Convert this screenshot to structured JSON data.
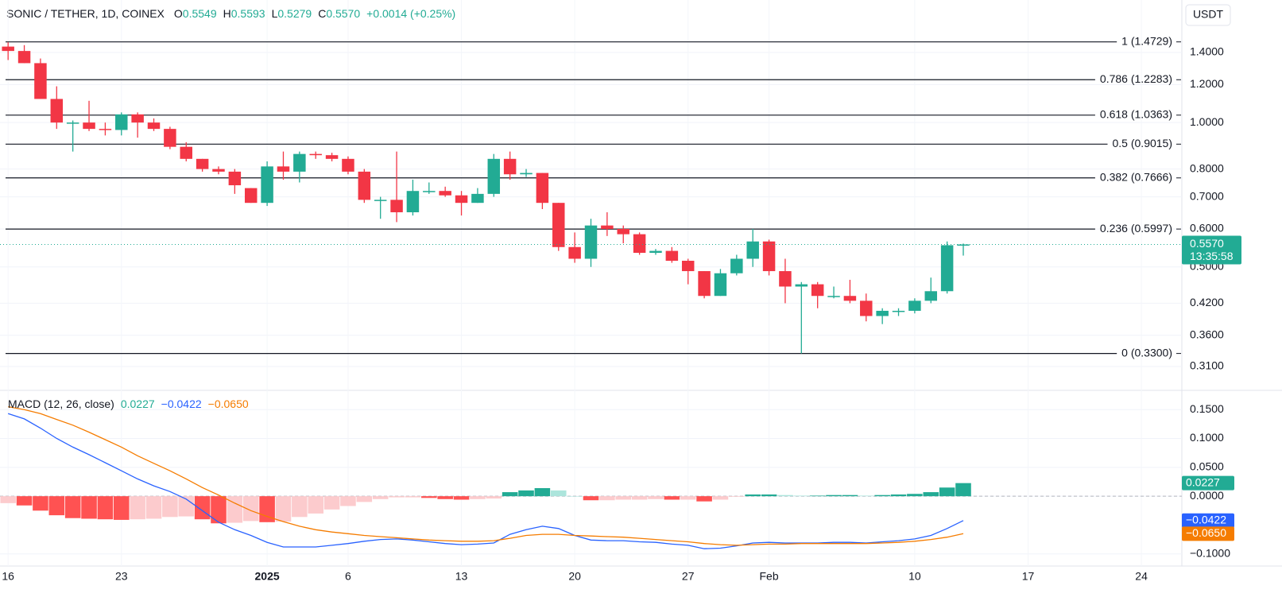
{
  "chart_data": [
    {
      "type": "candlestick",
      "title": "SONIC / TETHER, 1D, COINEX",
      "legend_values": [
        {
          "key": "O",
          "text": "0.5549"
        },
        {
          "key": "H",
          "text": "0.5593"
        },
        {
          "key": "L",
          "text": "0.5279"
        },
        {
          "key": "C",
          "text": "0.5570"
        }
      ],
      "change": "+0.0014 (+0.25%)",
      "currency": "USDT",
      "categories": [
        "16",
        null,
        null,
        null,
        null,
        null,
        null,
        "23",
        null,
        null,
        null,
        null,
        null,
        null,
        null,
        null,
        "2025",
        null,
        null,
        null,
        null,
        "6",
        null,
        null,
        null,
        null,
        null,
        null,
        "13",
        null,
        null,
        null,
        null,
        null,
        null,
        "20",
        null,
        null,
        null,
        null,
        null,
        null,
        "27",
        null,
        null,
        null,
        null,
        "Feb",
        null,
        null,
        null,
        null,
        null,
        null,
        null,
        null,
        "10",
        null,
        null,
        null,
        null,
        null,
        null,
        "17",
        null,
        null,
        null,
        null,
        null,
        null,
        "24",
        null,
        null
      ],
      "open": [
        1.44,
        1.41,
        1.33,
        1.12,
        1.0,
        1.0,
        0.97,
        0.965,
        1.04,
        1.0,
        0.97,
        0.89,
        0.84,
        0.8,
        0.79,
        0.73,
        0.68,
        0.81,
        0.79,
        0.86,
        0.855,
        0.84,
        0.79,
        0.69,
        0.69,
        0.65,
        0.72,
        0.72,
        0.705,
        0.68,
        0.71,
        0.84,
        0.78,
        0.785,
        0.68,
        0.55,
        0.52,
        0.61,
        0.6,
        0.585,
        0.535,
        0.54,
        0.515,
        0.49,
        0.435,
        0.485,
        0.52,
        0.565,
        0.49,
        0.455,
        0.46,
        0.435,
        0.435,
        0.425,
        0.395,
        0.405,
        0.405,
        0.425,
        0.445,
        0.5549,
        null,
        null,
        null,
        null,
        null,
        null,
        null,
        null,
        null,
        null,
        null,
        null,
        null
      ],
      "high": [
        1.47,
        1.45,
        1.36,
        1.19,
        1.01,
        1.11,
        1.0,
        1.05,
        1.05,
        1.02,
        0.98,
        0.91,
        0.84,
        0.81,
        0.8,
        0.73,
        0.83,
        0.87,
        0.87,
        0.87,
        0.865,
        0.85,
        0.8,
        0.7,
        0.87,
        0.76,
        0.75,
        0.735,
        0.72,
        0.73,
        0.86,
        0.87,
        0.8,
        0.785,
        0.68,
        0.59,
        0.63,
        0.65,
        0.61,
        0.59,
        0.545,
        0.55,
        0.52,
        0.49,
        0.495,
        0.53,
        0.6,
        0.57,
        0.52,
        0.465,
        0.465,
        0.455,
        0.47,
        0.44,
        0.41,
        0.41,
        0.43,
        0.475,
        0.565,
        0.5593,
        null,
        null,
        null,
        null,
        null,
        null,
        null,
        null,
        null,
        null,
        null,
        null,
        null
      ],
      "low": [
        1.35,
        1.33,
        1.12,
        0.97,
        0.87,
        0.96,
        0.94,
        0.94,
        0.93,
        0.96,
        0.88,
        0.83,
        0.79,
        0.78,
        0.71,
        0.68,
        0.67,
        0.76,
        0.75,
        0.84,
        0.83,
        0.78,
        0.68,
        0.63,
        0.62,
        0.64,
        0.71,
        0.7,
        0.64,
        0.68,
        0.7,
        0.76,
        0.77,
        0.66,
        0.54,
        0.51,
        0.5,
        0.58,
        0.56,
        0.53,
        0.53,
        0.51,
        0.46,
        0.43,
        0.435,
        0.48,
        0.5,
        0.48,
        0.42,
        0.33,
        0.41,
        0.43,
        0.42,
        0.385,
        0.38,
        0.395,
        0.4,
        0.42,
        0.44,
        0.5279,
        null,
        null,
        null,
        null,
        null,
        null,
        null,
        null,
        null,
        null,
        null,
        null,
        null
      ],
      "close": [
        1.41,
        1.33,
        1.12,
        1.0,
        1.0,
        0.97,
        0.965,
        1.04,
        1.0,
        0.97,
        0.89,
        0.84,
        0.8,
        0.79,
        0.74,
        0.68,
        0.81,
        0.79,
        0.86,
        0.855,
        0.84,
        0.79,
        0.69,
        0.69,
        0.65,
        0.72,
        0.72,
        0.705,
        0.68,
        0.71,
        0.84,
        0.78,
        0.785,
        0.68,
        0.55,
        0.52,
        0.61,
        0.6,
        0.585,
        0.535,
        0.54,
        0.515,
        0.49,
        0.435,
        0.485,
        0.52,
        0.565,
        0.49,
        0.455,
        0.46,
        0.435,
        0.435,
        0.425,
        0.395,
        0.405,
        0.405,
        0.425,
        0.445,
        0.5549,
        0.557,
        null,
        null,
        null,
        null,
        null,
        null,
        null,
        null,
        null,
        null,
        null,
        null,
        null
      ],
      "up_color": "#22ab94",
      "down_color": "#f23645",
      "log_scale": true,
      "grid": true,
      "ylim": [
        0.2775,
        1.801
      ],
      "yticks": [
        {
          "value": 1.4,
          "label": "1.4000"
        },
        {
          "value": 1.2,
          "label": "1.2000"
        },
        {
          "value": 1.0,
          "label": "1.0000"
        },
        {
          "value": 0.8,
          "label": "0.8000"
        },
        {
          "value": 0.7,
          "label": "0.7000"
        },
        {
          "value": 0.6,
          "label": "0.6000"
        },
        {
          "value": 0.5,
          "label": "0.5000"
        },
        {
          "value": 0.42,
          "label": "0.4200"
        },
        {
          "value": 0.36,
          "label": "0.3600"
        },
        {
          "value": 0.31,
          "label": "0.3100"
        }
      ],
      "levels": [
        {
          "label": "1 (1.4729)",
          "value": 1.4729
        },
        {
          "label": "0.786 (1.2283)",
          "value": 1.2283
        },
        {
          "label": "0.618 (1.0363)",
          "value": 1.0363
        },
        {
          "label": "0.5 (0.9015)",
          "value": 0.9015
        },
        {
          "label": "0.382 (0.7666)",
          "value": 0.7666
        },
        {
          "label": "0.236 (0.5997)",
          "value": 0.5997
        },
        {
          "label": "0 (0.3300)",
          "value": 0.33
        }
      ],
      "level_color": "#131722",
      "last_price": {
        "value": 0.557,
        "label": "0.5570"
      },
      "countdown": "13:35:58"
    },
    {
      "type": "macd",
      "title": "MACD (12, 26, close)",
      "ylim": [
        -0.121,
        0.182
      ],
      "yticks": [
        {
          "value": 0.15,
          "label": "0.1500"
        },
        {
          "value": 0.1,
          "label": "0.1000"
        },
        {
          "value": 0.05,
          "label": "0.0500"
        },
        {
          "value": 0,
          "label": "0.0000"
        },
        {
          "value": -0.1,
          "label": "−0.1000"
        }
      ],
      "zero_line": true,
      "series": [
        {
          "style": "histogram",
          "color": "#22ab94",
          "palette": [
            "#22ab94",
            "#ace5dc",
            "#fccbcd",
            "#ff5252"
          ],
          "value_label": "0.0227",
          "values": [
            -0.012,
            -0.016,
            -0.025,
            -0.033,
            -0.038,
            -0.039,
            -0.04,
            -0.041,
            -0.04,
            -0.039,
            -0.036,
            -0.035,
            -0.04,
            -0.047,
            -0.046,
            -0.043,
            -0.045,
            -0.044,
            -0.036,
            -0.03,
            -0.023,
            -0.017,
            -0.01,
            -0.005,
            -0.002,
            -0.002,
            -0.003,
            -0.005,
            -0.006,
            -0.005,
            -0.004,
            0.007,
            0.01,
            0.014,
            0.01,
            0.0,
            -0.007,
            -0.007,
            -0.006,
            -0.006,
            -0.005,
            -0.006,
            -0.006,
            -0.009,
            -0.006,
            -0.001,
            0.003,
            0.003,
            0.002,
            0.001,
            0.001,
            0.002,
            0.002,
            0.001,
            0.002,
            0.003,
            0.004,
            0.007,
            0.015,
            0.0227,
            null,
            null,
            null,
            null,
            null,
            null,
            null,
            null,
            null,
            null,
            null,
            null,
            null
          ]
        },
        {
          "style": "line",
          "color": "#2962ff",
          "value_label": "−0.0422",
          "values": [
            0.143,
            0.134,
            0.118,
            0.1,
            0.085,
            0.072,
            0.058,
            0.044,
            0.03,
            0.018,
            0.008,
            -0.005,
            -0.025,
            -0.045,
            -0.058,
            -0.068,
            -0.08,
            -0.088,
            -0.088,
            -0.088,
            -0.085,
            -0.082,
            -0.078,
            -0.075,
            -0.074,
            -0.076,
            -0.079,
            -0.082,
            -0.084,
            -0.083,
            -0.081,
            -0.066,
            -0.058,
            -0.052,
            -0.056,
            -0.068,
            -0.076,
            -0.077,
            -0.077,
            -0.079,
            -0.08,
            -0.083,
            -0.085,
            -0.091,
            -0.09,
            -0.086,
            -0.081,
            -0.08,
            -0.081,
            -0.081,
            -0.081,
            -0.08,
            -0.08,
            -0.081,
            -0.079,
            -0.077,
            -0.074,
            -0.068,
            -0.056,
            -0.0422,
            null,
            null,
            null,
            null,
            null,
            null,
            null,
            null,
            null,
            null,
            null,
            null,
            null
          ]
        },
        {
          "style": "line",
          "color": "#f57c00",
          "value_label": "−0.0650",
          "values": [
            0.155,
            0.15,
            0.143,
            0.133,
            0.123,
            0.111,
            0.098,
            0.085,
            0.07,
            0.057,
            0.044,
            0.03,
            0.015,
            0.002,
            -0.012,
            -0.025,
            -0.035,
            -0.044,
            -0.052,
            -0.058,
            -0.062,
            -0.065,
            -0.068,
            -0.07,
            -0.072,
            -0.074,
            -0.076,
            -0.077,
            -0.078,
            -0.078,
            -0.077,
            -0.073,
            -0.068,
            -0.066,
            -0.066,
            -0.068,
            -0.069,
            -0.07,
            -0.071,
            -0.073,
            -0.075,
            -0.077,
            -0.079,
            -0.082,
            -0.084,
            -0.085,
            -0.084,
            -0.083,
            -0.083,
            -0.082,
            -0.082,
            -0.082,
            -0.082,
            -0.082,
            -0.081,
            -0.08,
            -0.078,
            -0.075,
            -0.071,
            -0.065,
            null,
            null,
            null,
            null,
            null,
            null,
            null,
            null,
            null,
            null,
            null,
            null,
            null
          ]
        }
      ]
    }
  ]
}
